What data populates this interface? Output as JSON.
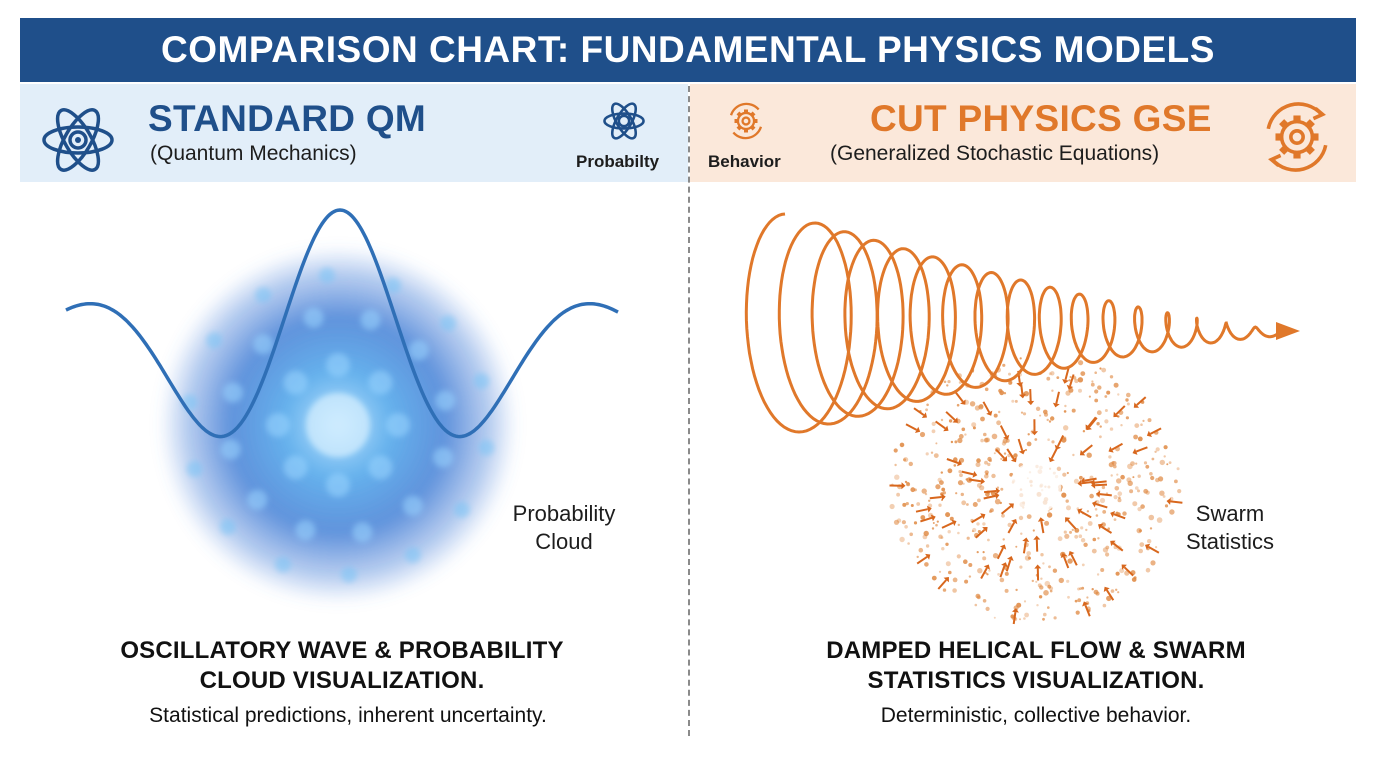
{
  "title": "COMPARISON CHART: FUNDAMENTAL PHYSICS MODELS",
  "colors": {
    "blue": "#1f4f8a",
    "orange": "#e0782a",
    "left_bg": "#e2eef9",
    "right_bg": "#fbe8da"
  },
  "left": {
    "icon": "atom-icon",
    "title": "STANDARD QM",
    "subtitle": "(Quantum Mechanics)",
    "mini_icon": "atom-icon",
    "mini_label": "Probabilty",
    "viz_label_line1": "Probability",
    "viz_label_line2": "Cloud",
    "caption_line1": "OSCILLATORY WAVE & PROBABILITY",
    "caption_line2": "CLOUD VISUALIZATION.",
    "caption_sub": "Statistical predictions, inherent uncertainty."
  },
  "right": {
    "icon": "gear-cycle-icon",
    "title": "CUT PHYSICS GSE",
    "subtitle": "(Generalized Stochastic Equations)",
    "mini_icon": "gear-cycle-icon",
    "mini_label": "Behavior",
    "viz_label_line1": "Swarm",
    "viz_label_line2": "Statistics",
    "caption_line1": "DAMPED HELICAL FLOW & SWARM",
    "caption_line2": "STATISTICS VISUALIZATION.",
    "caption_sub": "Deterministic, collective behavior."
  }
}
